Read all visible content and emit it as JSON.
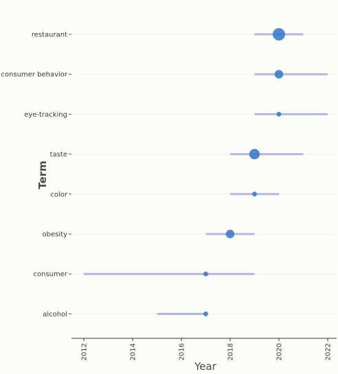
{
  "chart_data": {
    "type": "scatter",
    "xlabel": "Year",
    "ylabel": "Term",
    "xlim": [
      2011.5,
      2022.4
    ],
    "xticks": [
      "2012",
      "2014",
      "2016",
      "2018",
      "2020",
      "2022"
    ],
    "grid": false,
    "colors": {
      "range": "#b3b6e0",
      "point": "#3b7dc8"
    },
    "terms": [
      {
        "term": "restaurant",
        "start": 2019,
        "end": 2021,
        "median": 2020,
        "freq": 5
      },
      {
        "term": "consumer behavior",
        "start": 2019,
        "end": 2022,
        "median": 2020,
        "freq": 3
      },
      {
        "term": "eye-tracking",
        "start": 2019,
        "end": 2022,
        "median": 2020,
        "freq": 1
      },
      {
        "term": "taste",
        "start": 2018,
        "end": 2021,
        "median": 2019,
        "freq": 4
      },
      {
        "term": "color",
        "start": 2018,
        "end": 2020,
        "median": 2019,
        "freq": 1
      },
      {
        "term": "obesity",
        "start": 2017,
        "end": 2019,
        "median": 2018,
        "freq": 3
      },
      {
        "term": "consumer",
        "start": 2012,
        "end": 2019,
        "median": 2017,
        "freq": 1
      },
      {
        "term": "alcohol",
        "start": 2015,
        "end": 2017,
        "median": 2017,
        "freq": 1
      }
    ]
  }
}
